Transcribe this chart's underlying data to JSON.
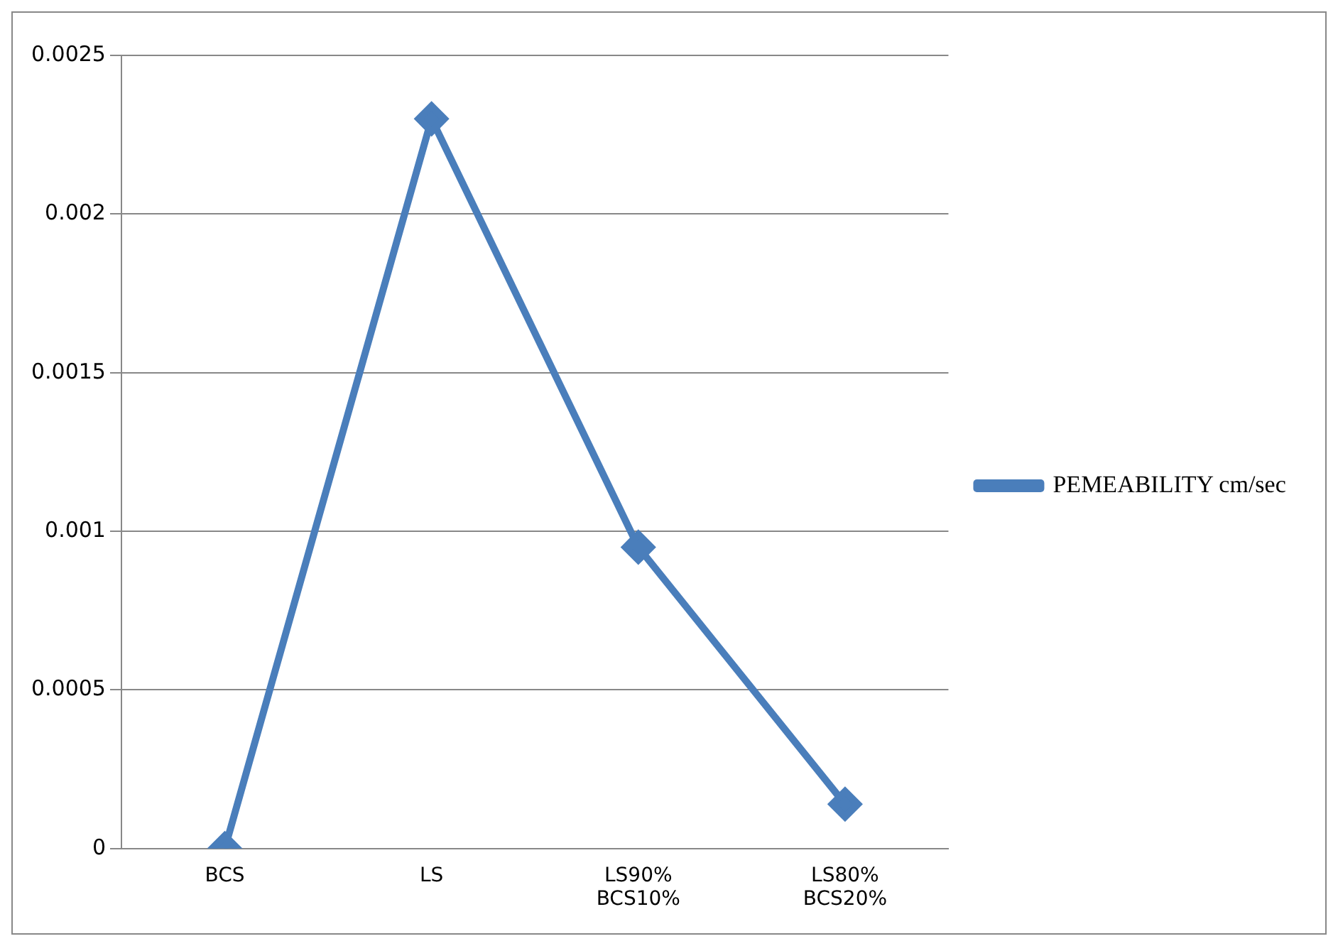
{
  "chart_data": {
    "type": "line",
    "categories": [
      "BCS",
      "LS",
      "LS90%\nBCS10%",
      "LS80%\nBCS20%"
    ],
    "series": [
      {
        "name": "PEMEABILITY cm/sec",
        "color": "#4a7ebb",
        "values": [
          0,
          0.0023,
          0.00095,
          0.00014
        ]
      }
    ],
    "ylim": [
      0,
      0.0025
    ],
    "yticks": [
      0,
      0.0005,
      0.001,
      0.0015,
      0.002,
      0.0025
    ],
    "grid": "y",
    "legend": "right",
    "marker": "diamond",
    "line_style": "solid"
  }
}
